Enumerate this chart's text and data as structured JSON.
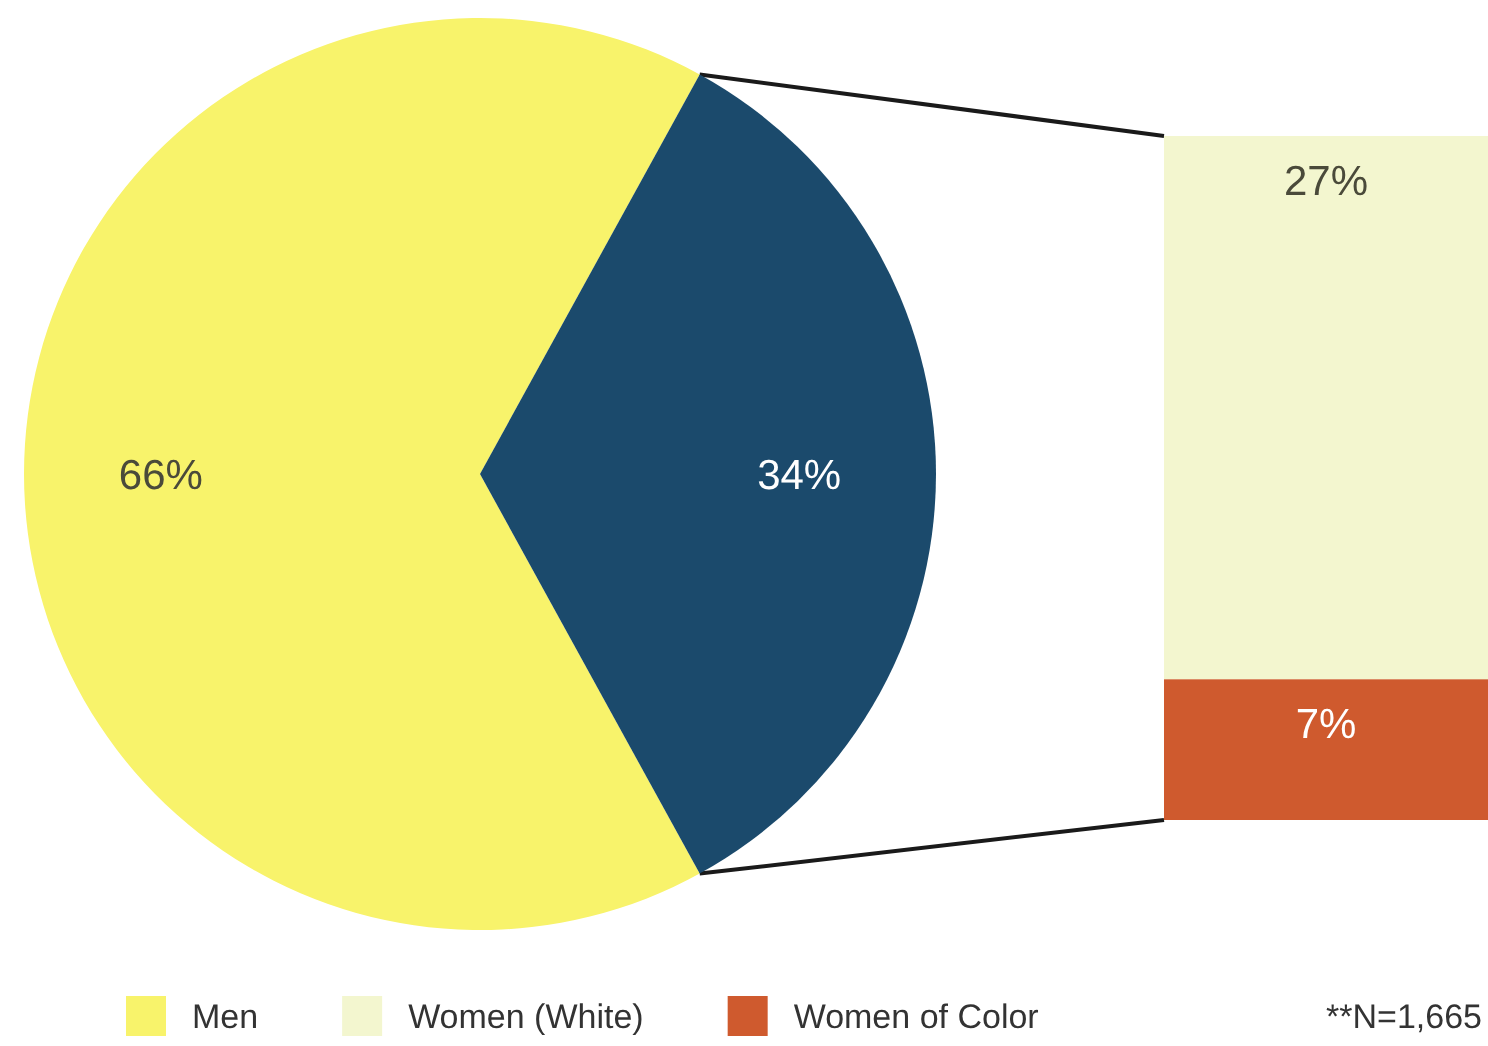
{
  "chart_data": [
    {
      "type": "pie",
      "categories": [
        "Men",
        null
      ],
      "values": [
        66,
        34
      ],
      "colors": [
        "#f8f36b",
        "#1b4a6c"
      ],
      "value_labels": [
        "66%",
        "34%"
      ],
      "legend": "bottom"
    },
    {
      "type": "bar",
      "stacked": true,
      "categories": [
        null
      ],
      "series": [
        {
          "name": "Women of Color",
          "color": "#cf5a2e",
          "values": [
            7
          ],
          "value_labels": [
            "7%"
          ]
        },
        {
          "name": "Women (White)",
          "color": "#f3f6cf",
          "values": [
            27
          ],
          "value_labels": [
            "27%"
          ]
        }
      ],
      "tick_labels": false,
      "legend": "bottom",
      "annotations": [
        "**N=1,665"
      ]
    }
  ]
}
